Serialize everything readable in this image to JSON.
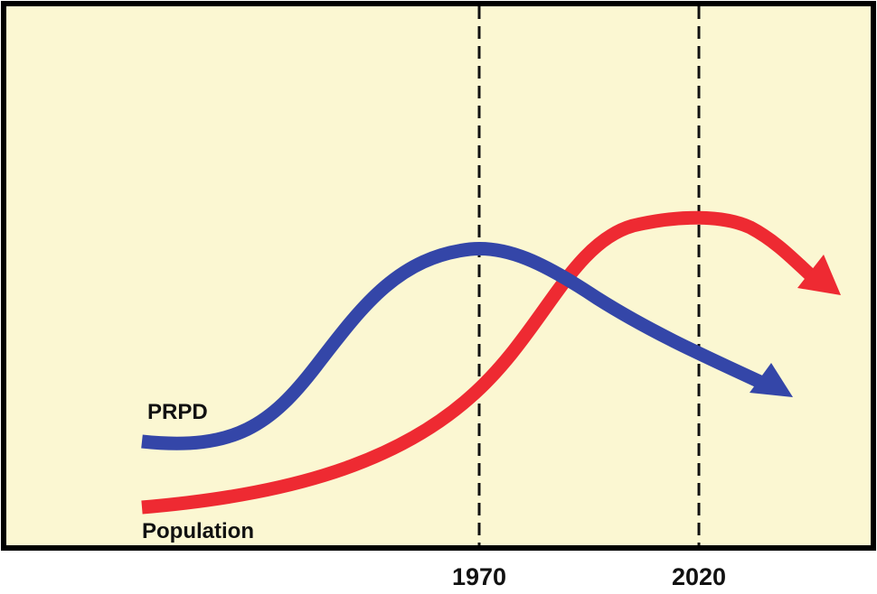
{
  "colors": {
    "background": "#fbf7d2",
    "frame": "#000000",
    "prpd_curve": "#3446a8",
    "population_curve": "#ee2a32",
    "marker_line": "#111111"
  },
  "labels": {
    "prpd": "PRPD",
    "population": "Population"
  },
  "markers": {
    "year_1970": "1970",
    "year_2020": "2020"
  }
}
